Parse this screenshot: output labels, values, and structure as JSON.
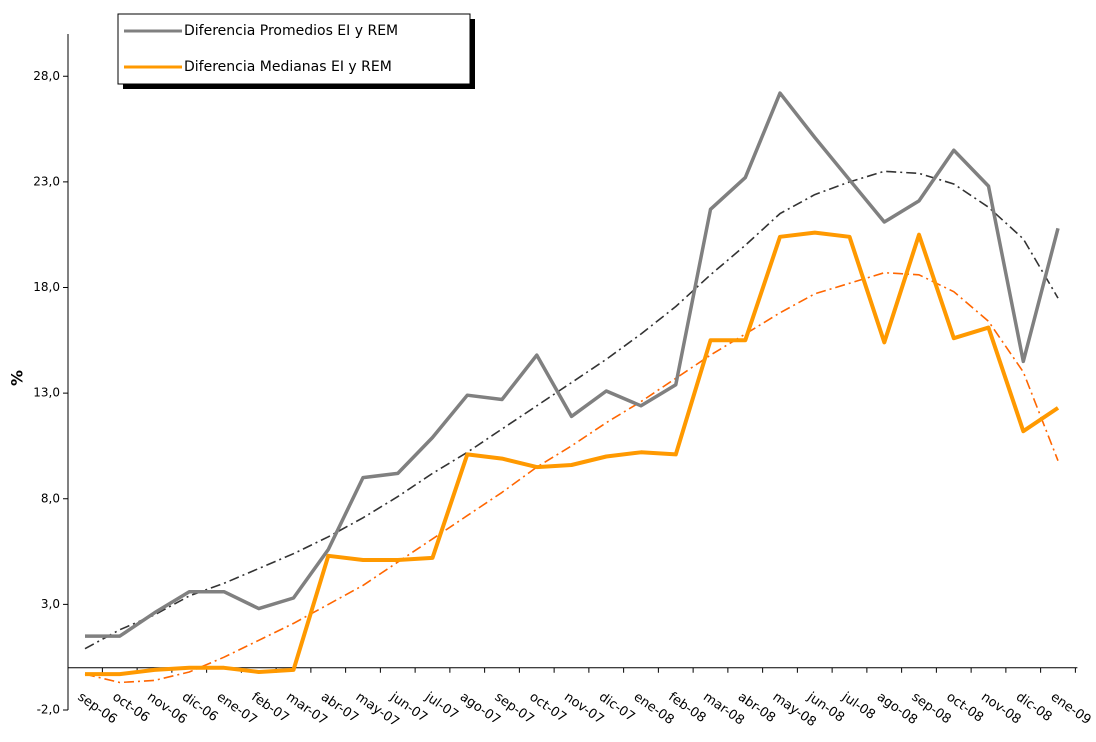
{
  "chart_data": {
    "type": "line",
    "ylabel": "%",
    "categories": [
      "sep-06",
      "oct-06",
      "nov-06",
      "dic-06",
      "ene-07",
      "feb-07",
      "mar-07",
      "abr-07",
      "may-07",
      "jun-07",
      "jul-07",
      "ago-07",
      "sep-07",
      "oct-07",
      "nov-07",
      "dic-07",
      "ene-08",
      "feb-08",
      "mar-08",
      "abr-08",
      "may-08",
      "jun-08",
      "jul-08",
      "ago-08",
      "sep-08",
      "oct-08",
      "nov-08",
      "dic-08",
      "ene-09"
    ],
    "series": [
      {
        "name": "Diferencia Promedios EI y REM",
        "color": "#808080",
        "values": [
          1.5,
          1.5,
          2.6,
          3.6,
          3.6,
          2.8,
          3.3,
          5.6,
          9.0,
          9.2,
          10.9,
          12.9,
          12.7,
          14.8,
          11.9,
          13.1,
          12.4,
          13.4,
          21.7,
          23.2,
          27.2,
          25.1,
          23.1,
          21.1,
          22.1,
          24.5,
          22.8,
          14.5,
          20.8
        ]
      },
      {
        "name": "Diferencia Medianas EI y REM",
        "color": "#ff9900",
        "values": [
          -0.3,
          -0.3,
          -0.1,
          0.0,
          0.0,
          -0.2,
          -0.1,
          5.3,
          5.1,
          5.1,
          5.2,
          10.1,
          9.9,
          9.5,
          9.6,
          10.0,
          10.2,
          10.1,
          15.5,
          15.5,
          20.4,
          20.6,
          20.4,
          15.4,
          20.5,
          15.6,
          16.1,
          11.2,
          12.3
        ]
      },
      {
        "color": "#333333",
        "style": "dashdot",
        "values": [
          0.9,
          1.8,
          2.5,
          3.4,
          4.0,
          4.7,
          5.4,
          6.2,
          7.1,
          8.1,
          9.2,
          10.2,
          11.3,
          12.4,
          13.5,
          14.6,
          15.8,
          17.1,
          18.6,
          20.0,
          21.5,
          22.4,
          23.0,
          23.5,
          23.4,
          22.9,
          21.8,
          20.3,
          17.5
        ]
      },
      {
        "color": "#ff6600",
        "style": "dashdot",
        "values": [
          -0.3,
          -0.7,
          -0.6,
          -0.2,
          0.5,
          1.3,
          2.1,
          3.0,
          3.9,
          5.0,
          6.1,
          7.2,
          8.3,
          9.5,
          10.5,
          11.6,
          12.6,
          13.7,
          14.8,
          15.8,
          16.8,
          17.7,
          18.2,
          18.7,
          18.6,
          17.8,
          16.4,
          14.0,
          9.8
        ]
      }
    ],
    "ylim": [
      -2,
      30
    ],
    "yticks": [
      {
        "value": -2,
        "label": "-2,0"
      },
      {
        "value": 3,
        "label": "3,0"
      },
      {
        "value": 8,
        "label": "8,0"
      },
      {
        "value": 13,
        "label": "13,0"
      },
      {
        "value": 18,
        "label": "18,0"
      },
      {
        "value": 23,
        "label": "23,0"
      },
      {
        "value": 28,
        "label": "28,0"
      }
    ],
    "legend": "top-left"
  }
}
